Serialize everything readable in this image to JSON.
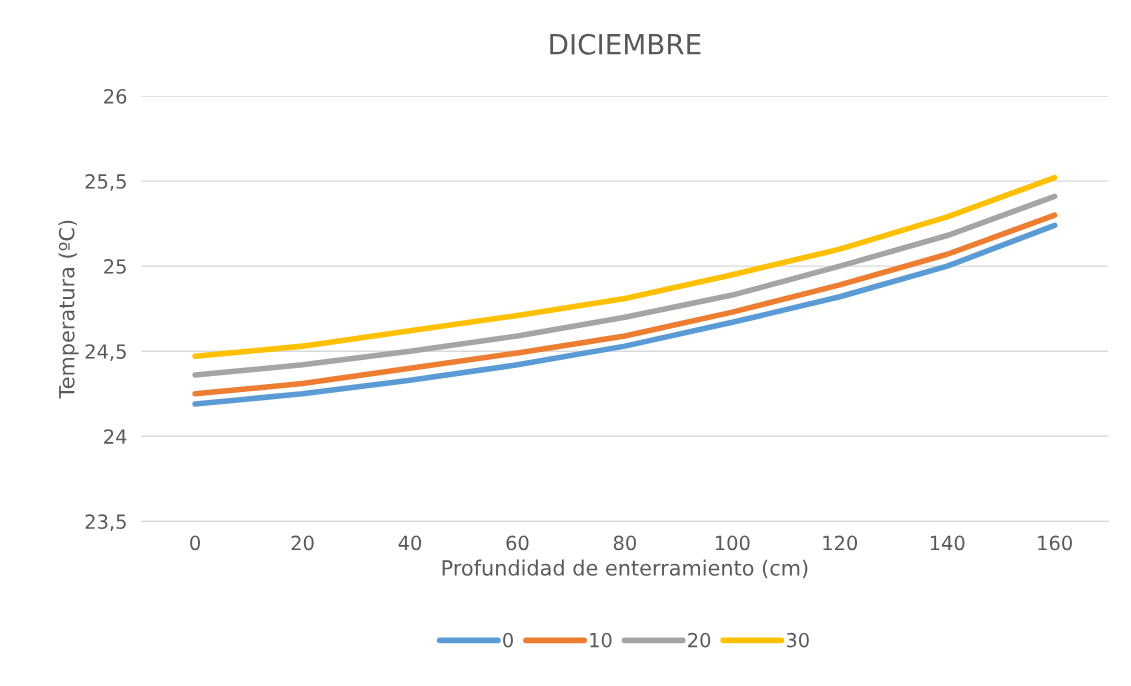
{
  "chart_data": {
    "type": "line",
    "title": "DICIEMBRE",
    "xlabel": "Profundidad de enterramiento (cm)",
    "ylabel": "Temperatura (ºC)",
    "categories": [
      "0",
      "20",
      "40",
      "60",
      "80",
      "100",
      "120",
      "140",
      "160"
    ],
    "series": [
      {
        "name": "0",
        "color": "#5b9bd5",
        "values": [
          24.19,
          24.25,
          24.33,
          24.42,
          24.53,
          24.67,
          24.82,
          25.0,
          25.24
        ]
      },
      {
        "name": "10",
        "color": "#ed7d31",
        "values": [
          24.25,
          24.31,
          24.4,
          24.49,
          24.59,
          24.73,
          24.89,
          25.07,
          25.3
        ]
      },
      {
        "name": "20",
        "color": "#a5a5a5",
        "values": [
          24.36,
          24.42,
          24.5,
          24.59,
          24.7,
          24.83,
          25.0,
          25.18,
          25.41
        ]
      },
      {
        "name": "30",
        "color": "#ffc000",
        "values": [
          24.47,
          24.53,
          24.62,
          24.71,
          24.81,
          24.95,
          25.1,
          25.29,
          25.52
        ]
      }
    ],
    "ylim": [
      23.5,
      26
    ],
    "yticks": [
      {
        "value": 23.5,
        "label": "23,5"
      },
      24,
      {
        "value": 24.5,
        "label": "24,5"
      },
      25,
      {
        "value": 25.5,
        "label": "25,5"
      },
      26
    ],
    "grid": "y",
    "legend": "bottom",
    "marker": "none",
    "line_style": "solid"
  }
}
